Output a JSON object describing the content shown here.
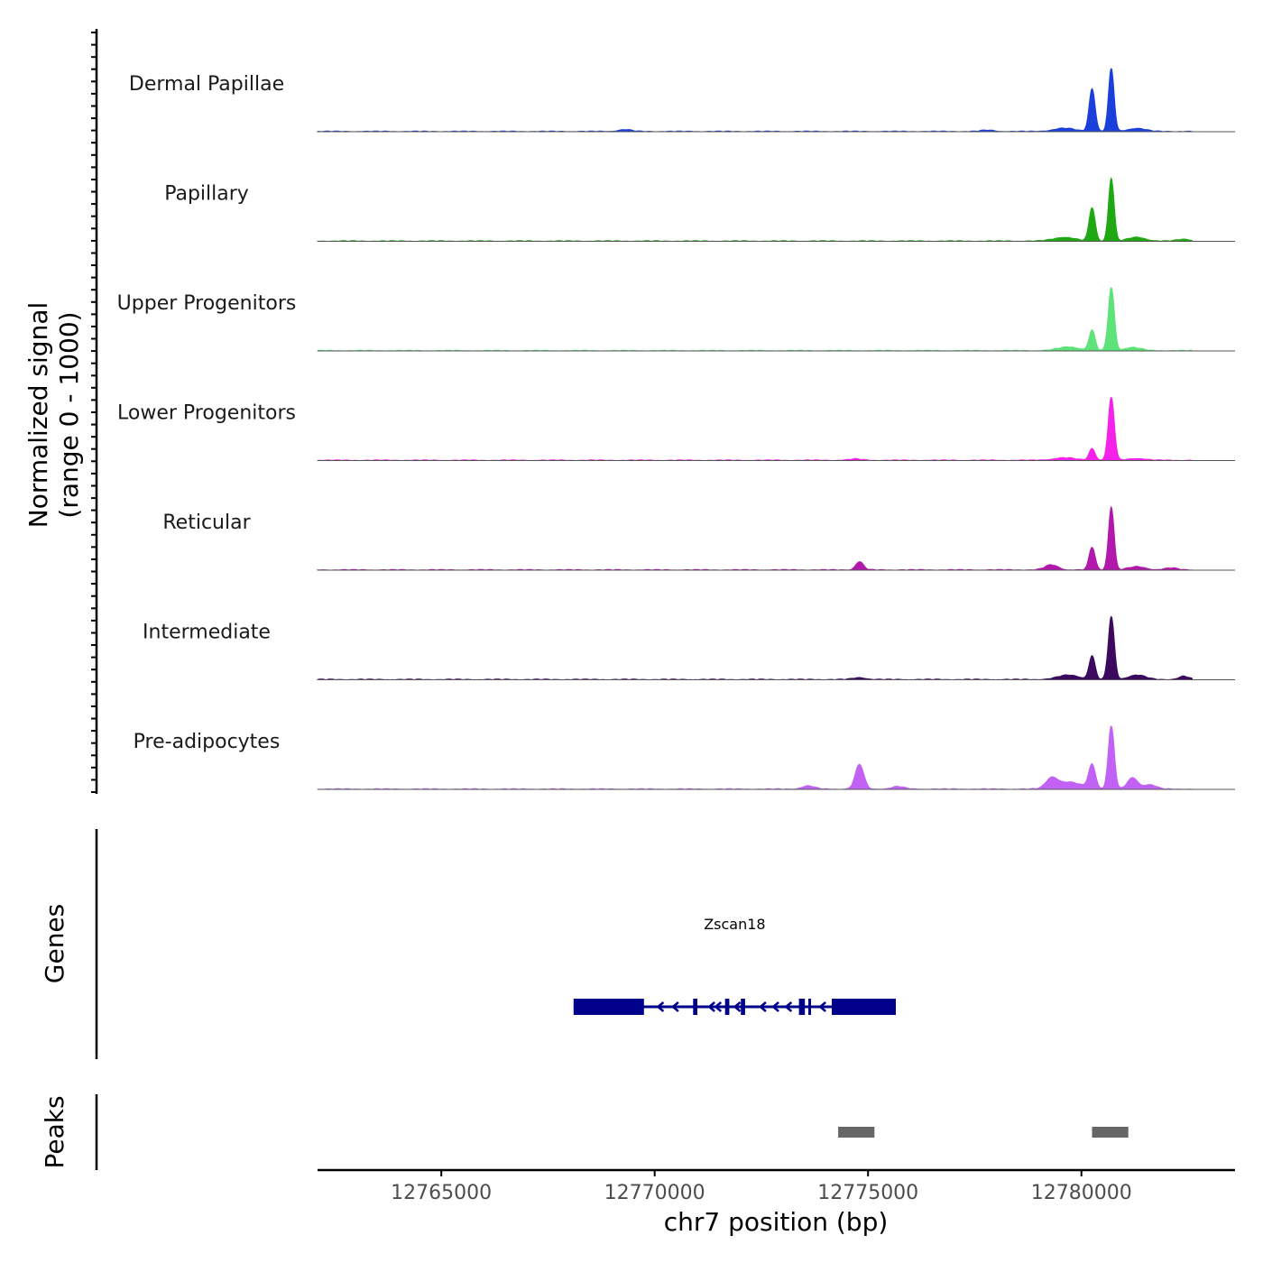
{
  "chart_data": {
    "type": "area",
    "chromosome": "chr7",
    "xlim": [
      12762100,
      12783600
    ],
    "signal_range": [
      0,
      1000
    ],
    "ylabel_line1": "Normalized signal",
    "ylabel_line2": "(range 0 - 1000)",
    "xlabel": "chr7 position (bp)",
    "xticks": [
      12765000,
      12770000,
      12775000,
      12780000
    ],
    "xtick_labels": [
      "12765000",
      "12770000",
      "12775000",
      "12780000"
    ],
    "signal_xmin": 12762100,
    "signal_xmax": 12782600,
    "tracks": [
      {
        "name": "Dermal Papillae",
        "color": "#1a3fdb",
        "peaks": [
          [
            12780250,
            0.68,
            70
          ],
          [
            12780700,
            1.0,
            65
          ],
          [
            12779600,
            0.05,
            250
          ],
          [
            12781300,
            0.05,
            200
          ],
          [
            12769300,
            0.03,
            150
          ],
          [
            12777800,
            0.02,
            150
          ]
        ]
      },
      {
        "name": "Papillary",
        "color": "#1fa813",
        "peaks": [
          [
            12780250,
            0.53,
            70
          ],
          [
            12780700,
            1.0,
            65
          ],
          [
            12779600,
            0.06,
            250
          ],
          [
            12781300,
            0.06,
            200
          ],
          [
            12782400,
            0.03,
            150
          ]
        ]
      },
      {
        "name": "Upper Progenitors",
        "color": "#5ee27a",
        "peaks": [
          [
            12780250,
            0.32,
            70
          ],
          [
            12780700,
            1.0,
            70
          ],
          [
            12779700,
            0.06,
            250
          ],
          [
            12781200,
            0.05,
            200
          ]
        ]
      },
      {
        "name": "Lower Progenitors",
        "color": "#f522ea",
        "peaks": [
          [
            12780250,
            0.19,
            70
          ],
          [
            12780700,
            1.0,
            70
          ],
          [
            12779600,
            0.04,
            250
          ],
          [
            12781300,
            0.03,
            200
          ],
          [
            12774700,
            0.02,
            150
          ]
        ]
      },
      {
        "name": "Reticular",
        "color": "#b318ad",
        "peaks": [
          [
            12780250,
            0.36,
            70
          ],
          [
            12780700,
            1.0,
            65
          ],
          [
            12774800,
            0.13,
            90
          ],
          [
            12779300,
            0.08,
            150
          ],
          [
            12781300,
            0.05,
            200
          ],
          [
            12782100,
            0.03,
            150
          ]
        ]
      },
      {
        "name": "Intermediate",
        "color": "#3b0a5e",
        "peaks": [
          [
            12780250,
            0.37,
            70
          ],
          [
            12780700,
            1.0,
            70
          ],
          [
            12779700,
            0.07,
            250
          ],
          [
            12781300,
            0.07,
            200
          ],
          [
            12782400,
            0.05,
            120
          ],
          [
            12774800,
            0.03,
            150
          ]
        ]
      },
      {
        "name": "Pre-adipocytes",
        "color": "#c262f4",
        "peaks": [
          [
            12774800,
            0.39,
            100
          ],
          [
            12780250,
            0.38,
            80
          ],
          [
            12780700,
            1.0,
            70
          ],
          [
            12779300,
            0.15,
            130
          ],
          [
            12781200,
            0.18,
            120
          ],
          [
            12779700,
            0.11,
            300
          ],
          [
            12773600,
            0.05,
            150
          ],
          [
            12775700,
            0.04,
            150
          ],
          [
            12781600,
            0.07,
            150
          ]
        ]
      }
    ],
    "genes_label": "Genes",
    "gene": {
      "name": "Zscan18",
      "strand": "-",
      "start": 12768100,
      "end": 12775650,
      "color": "#00008b",
      "exons": [
        [
          12768100,
          12769750
        ],
        [
          12770900,
          12771000
        ],
        [
          12771650,
          12771750
        ],
        [
          12772020,
          12772120
        ],
        [
          12773380,
          12773520
        ],
        [
          12773600,
          12773650
        ],
        [
          12774150,
          12775650
        ]
      ],
      "direction_marks": [
        12770100,
        12770450,
        12771300,
        12771450,
        12771900,
        12772500,
        12772800,
        12773100,
        12773900
      ]
    },
    "peaks_label": "Peaks",
    "peak_regions": [
      [
        12774300,
        12775150
      ],
      [
        12780250,
        12781100
      ]
    ],
    "peak_color": "#666666",
    "signal_axis_color": "#000000",
    "baseline_color": "#555555"
  }
}
